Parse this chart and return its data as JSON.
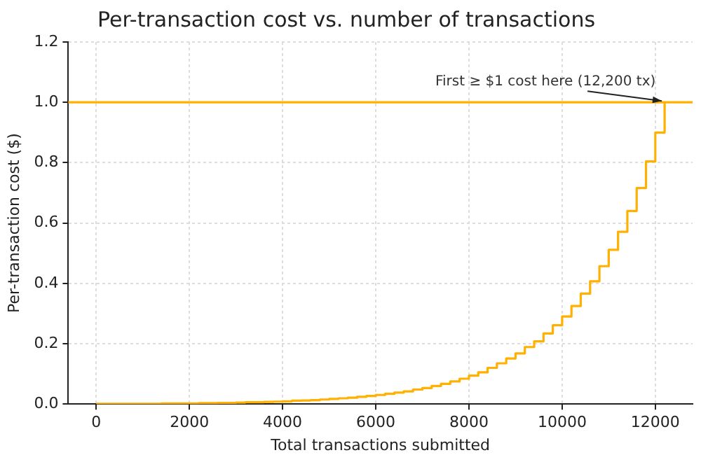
{
  "chart_data": {
    "type": "step",
    "title": "Per-transaction cost vs. number of transactions",
    "xlabel": "Total transactions submitted",
    "ylabel": "Per-transaction cost ($)",
    "x": [
      0,
      200,
      400,
      600,
      800,
      1000,
      1200,
      1400,
      1600,
      1800,
      2000,
      2200,
      2400,
      2600,
      2800,
      3000,
      3200,
      3400,
      3600,
      3800,
      4000,
      4200,
      4400,
      4600,
      4800,
      5000,
      5200,
      5400,
      5600,
      5800,
      6000,
      6200,
      6400,
      6600,
      6800,
      7000,
      7200,
      7400,
      7600,
      7800,
      8000,
      8200,
      8400,
      8600,
      8800,
      9000,
      9200,
      9400,
      9600,
      9800,
      10000,
      10200,
      10400,
      10600,
      10800,
      11000,
      11200,
      11400,
      11600,
      11800,
      12000,
      12200
    ],
    "series": [
      {
        "color": "#ffb000",
        "values": [
          0.001,
          0.001,
          0.001,
          0.001,
          0.001,
          0.001,
          0.001,
          0.002,
          0.002,
          0.002,
          0.002,
          0.003,
          0.003,
          0.004,
          0.004,
          0.005,
          0.006,
          0.006,
          0.007,
          0.008,
          0.009,
          0.011,
          0.012,
          0.013,
          0.015,
          0.017,
          0.019,
          0.021,
          0.024,
          0.027,
          0.03,
          0.034,
          0.038,
          0.042,
          0.048,
          0.053,
          0.06,
          0.067,
          0.075,
          0.084,
          0.094,
          0.105,
          0.12,
          0.135,
          0.151,
          0.168,
          0.189,
          0.208,
          0.234,
          0.261,
          0.29,
          0.325,
          0.366,
          0.407,
          0.457,
          0.511,
          0.571,
          0.64,
          0.716,
          0.804,
          0.9,
          1.0
        ]
      }
    ],
    "xlim": [
      -600,
      12800
    ],
    "xticks": [
      0,
      2000,
      4000,
      6000,
      8000,
      10000,
      12000
    ],
    "ylim": [
      0,
      1.2
    ],
    "yticks": [
      {
        "value": 0,
        "label": "0.0"
      },
      0.2,
      0.4,
      0.6,
      0.8,
      {
        "value": 1,
        "label": "1.0"
      },
      1.2
    ],
    "grid": true,
    "legend": false,
    "line_style": "solid",
    "marker": "none",
    "ref_lines": [
      {
        "axis": "y",
        "value": 1.0,
        "color": "#ffb000"
      }
    ],
    "annotations": [
      {
        "text": "First ≥ $1 cost here (12,200 tx)",
        "x": 12200,
        "y": 1.0
      }
    ]
  }
}
